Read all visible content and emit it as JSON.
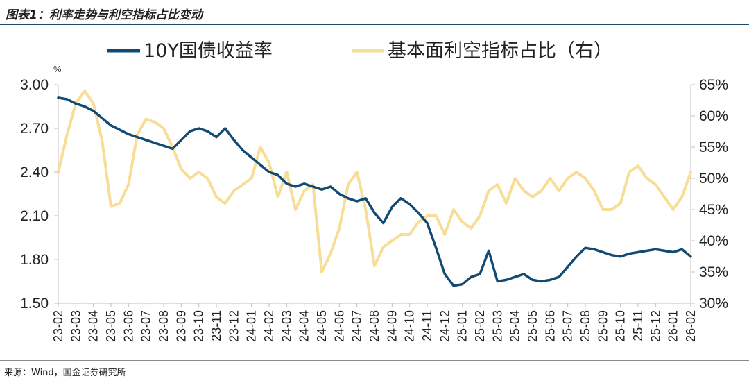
{
  "header": {
    "title": "图表1：利率走势与利空指标占比变动"
  },
  "footer": {
    "source": "来源：Wind，国金证券研究所"
  },
  "colors": {
    "yield": "#124a73",
    "ratio": "#f7dd95",
    "axis": "#bfbfbf"
  },
  "chart_data": {
    "type": "line",
    "title": "利率走势与利空指标占比变动",
    "y_left": {
      "unit": "%",
      "min": 1.5,
      "max": 3.0,
      "ticks": [
        "1.50",
        "1.80",
        "2.10",
        "2.40",
        "2.70",
        "3.00"
      ]
    },
    "y_right": {
      "min": 30,
      "max": 65,
      "ticks": [
        "30%",
        "35%",
        "40%",
        "45%",
        "50%",
        "55%",
        "60%",
        "65%"
      ]
    },
    "x_range": [
      0,
      36
    ],
    "categories": [
      "23-02",
      "23-03",
      "23-04",
      "23-05",
      "23-06",
      "23-07",
      "23-08",
      "23-09",
      "23-10",
      "23-11",
      "23-12",
      "24-01",
      "24-02",
      "24-03",
      "24-04",
      "24-05",
      "24-06",
      "24-07",
      "24-08",
      "24-09",
      "24-10",
      "24-11",
      "24-12",
      "25-01",
      "25-02",
      "25-03",
      "25-04",
      "25-05",
      "25-06",
      "25-07",
      "25-08",
      "25-09",
      "25-10",
      "25-11",
      "25-12",
      "26-01",
      "26-02"
    ],
    "legend": [
      "10Y国债收益率",
      "基本面利空指标占比（右）"
    ],
    "series": [
      {
        "name": "10Y国债收益率",
        "axis": "left",
        "x": [
          0,
          0.5,
          1,
          1.5,
          2,
          2.5,
          3,
          3.5,
          4,
          4.5,
          5,
          5.5,
          6,
          6.5,
          7,
          7.5,
          8,
          8.5,
          9,
          9.5,
          10,
          10.5,
          11,
          11.5,
          12,
          12.5,
          13,
          13.5,
          14,
          14.5,
          15,
          15.5,
          16,
          16.5,
          17,
          17.5,
          18,
          18.5,
          19,
          19.5,
          20,
          20.5,
          21,
          21.5,
          22,
          22.5,
          23,
          23.5,
          24,
          24.5,
          25,
          25.5,
          26,
          26.5,
          27,
          27.5,
          28,
          28.5,
          29,
          29.5,
          30,
          30.5,
          31,
          31.5,
          32,
          32.5,
          33,
          33.5,
          34,
          34.5,
          35,
          35.5,
          36
        ],
        "values": [
          2.91,
          2.9,
          2.87,
          2.85,
          2.82,
          2.77,
          2.72,
          2.69,
          2.66,
          2.64,
          2.62,
          2.6,
          2.58,
          2.56,
          2.62,
          2.68,
          2.7,
          2.68,
          2.64,
          2.7,
          2.62,
          2.55,
          2.5,
          2.45,
          2.4,
          2.38,
          2.32,
          2.3,
          2.32,
          2.3,
          2.28,
          2.3,
          2.25,
          2.22,
          2.2,
          2.22,
          2.12,
          2.05,
          2.16,
          2.22,
          2.18,
          2.12,
          2.05,
          1.88,
          1.7,
          1.62,
          1.63,
          1.68,
          1.7,
          1.86,
          1.65,
          1.66,
          1.68,
          1.7,
          1.66,
          1.65,
          1.66,
          1.68,
          1.75,
          1.82,
          1.88,
          1.87,
          1.85,
          1.83,
          1.82,
          1.84,
          1.85,
          1.86,
          1.87,
          1.86,
          1.85,
          1.87,
          1.82
        ]
      },
      {
        "name": "基本面利空指标占比（右）",
        "axis": "right",
        "x": [
          0,
          0.5,
          1,
          1.5,
          2,
          2.5,
          3,
          3.5,
          4,
          4.5,
          5,
          5.5,
          6,
          6.5,
          7,
          7.5,
          8,
          8.5,
          9,
          9.5,
          10,
          10.5,
          11,
          11.5,
          12,
          12.5,
          13,
          13.5,
          14,
          14.5,
          15,
          15.5,
          16,
          16.5,
          17,
          17.5,
          18,
          18.5,
          19,
          19.5,
          20,
          20.5,
          21,
          21.5,
          22,
          22.5,
          23,
          23.5,
          24,
          24.5,
          25,
          25.5,
          26,
          26.5,
          27,
          27.5,
          28,
          28.5,
          29,
          29.5,
          30,
          30.5,
          31,
          31.5,
          32,
          32.5,
          33,
          33.5,
          34,
          34.5,
          35,
          35.5,
          36
        ],
        "values": [
          51,
          57,
          62,
          64,
          62,
          56,
          45.5,
          46,
          49,
          57,
          59.5,
          59,
          58,
          55,
          51.5,
          50,
          51,
          50,
          47,
          46,
          48,
          49,
          50,
          55,
          52.5,
          47,
          51,
          45,
          48,
          49,
          35,
          38,
          42,
          49,
          51,
          45,
          36,
          39,
          40,
          41,
          41,
          43,
          44,
          44,
          41,
          45,
          43,
          42,
          44,
          48,
          49,
          46,
          50,
          48,
          47,
          48,
          50,
          48,
          50,
          51,
          50,
          48,
          45,
          45,
          46,
          51,
          52,
          50,
          49,
          47,
          45,
          47,
          51
        ]
      }
    ]
  }
}
